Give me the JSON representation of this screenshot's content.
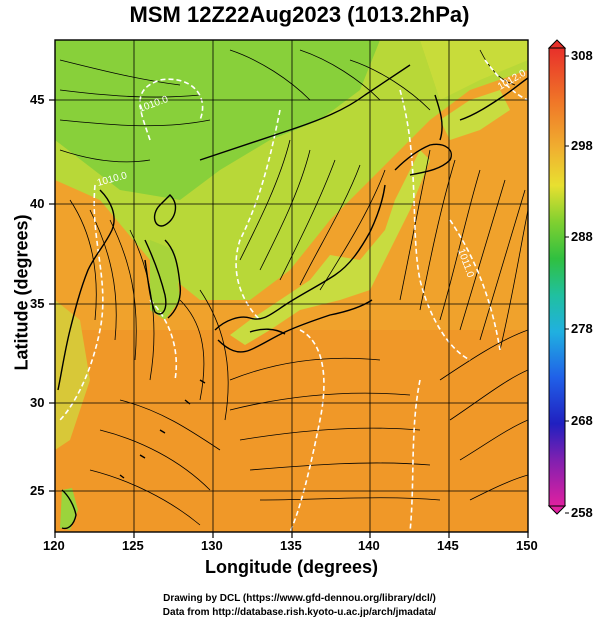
{
  "title": "MSM 12Z22Aug2023 (1013.2hPa)",
  "xlabel": "Longitude (degrees)",
  "ylabel": "Latitude  (degrees)",
  "x_ticks": [
    "120",
    "125",
    "130",
    "135",
    "140",
    "145",
    "150"
  ],
  "y_ticks": [
    "25",
    "30",
    "35",
    "40",
    "45"
  ],
  "colorbar_ticks": [
    "308",
    "298",
    "288",
    "278",
    "268",
    "258"
  ],
  "contour_labels": [
    "1010.0",
    "1010.0",
    "1011.0",
    "1012.0"
  ],
  "credit_line1": "Drawing by DCL (https://www.gfd-dennou.org/library/dcl/)",
  "credit_line2": "Data from http://database.rish.kyoto-u.ac.jp/arch/jmadata/",
  "colors": {
    "ocean_warm": "#f0a22c",
    "land_cool": "#9bd43c",
    "streamline": "#000000",
    "isobar": "#ffffff",
    "coastline": "#000000"
  },
  "chart_data": {
    "type": "heatmap",
    "xlim": [
      120,
      150
    ],
    "ylim": [
      22.5,
      47.5
    ],
    "colorbar_range": [
      258,
      308
    ],
    "field": "temperature (K) with streamlines and isobars"
  }
}
